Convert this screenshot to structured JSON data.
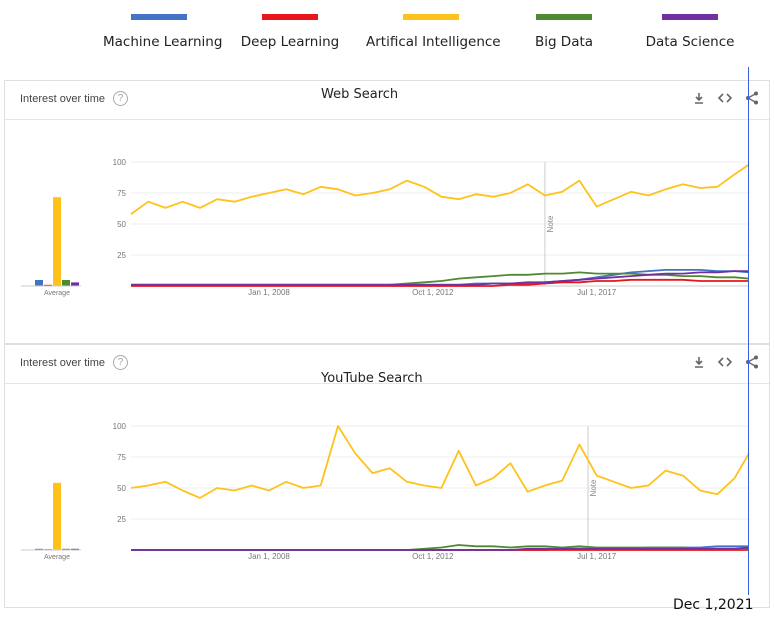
{
  "legend": [
    {
      "label": "Machine Learning",
      "color": "#4472c4"
    },
    {
      "label": "Deep Learning",
      "color": "#e8161b"
    },
    {
      "label": "Artifical Intelligence",
      "color": "#ffc21a"
    },
    {
      "label": "Big Data",
      "color": "#4e8a31"
    },
    {
      "label": "Data Science",
      "color": "#7030a0"
    }
  ],
  "panels": [
    {
      "header": "Interest over time",
      "subtitle": "Web Search"
    },
    {
      "header": "Interest over time",
      "subtitle": "YouTube Search"
    }
  ],
  "marker_label": "Dec 1,2021",
  "icons": {
    "help": "help-circle-icon",
    "download": "download-icon",
    "embed": "embed-code-icon",
    "share": "share-icon"
  },
  "chart_data": [
    {
      "type": "line",
      "title": "Web Search",
      "x_tick_labels": [
        "Jan 1, 2008",
        "Oct 1, 2012",
        "Jul 1, 2017"
      ],
      "y_ticks": [
        25,
        50,
        75,
        100
      ],
      "ylim": [
        0,
        100
      ],
      "xlim": [
        "2004-01",
        "2021-12"
      ],
      "annotation": "Note",
      "annotation_x": "2016-01",
      "average_label": "Average",
      "averages": [
        {
          "name": "Machine Learning",
          "value": 5
        },
        {
          "name": "Deep Learning",
          "value": 1
        },
        {
          "name": "Artifical Intelligence",
          "value": 74
        },
        {
          "name": "Big Data",
          "value": 5
        },
        {
          "name": "Data Science",
          "value": 3
        }
      ],
      "x": [
        "2004-01",
        "2004-07",
        "2005-01",
        "2005-07",
        "2006-01",
        "2006-07",
        "2007-01",
        "2007-07",
        "2008-01",
        "2008-07",
        "2009-01",
        "2009-07",
        "2010-01",
        "2010-07",
        "2011-01",
        "2011-07",
        "2012-01",
        "2012-07",
        "2013-01",
        "2013-07",
        "2014-01",
        "2014-07",
        "2015-01",
        "2015-07",
        "2016-01",
        "2016-07",
        "2017-01",
        "2017-07",
        "2018-01",
        "2018-07",
        "2019-01",
        "2019-07",
        "2020-01",
        "2020-07",
        "2021-01",
        "2021-07",
        "2021-12"
      ],
      "series": [
        {
          "name": "Machine Learning",
          "color": "#4472c4",
          "values": [
            1,
            1,
            1,
            1,
            1,
            1,
            1,
            1,
            1,
            1,
            1,
            1,
            1,
            1,
            1,
            1,
            1,
            1,
            1,
            1,
            2,
            2,
            2,
            2,
            3,
            4,
            5,
            7,
            9,
            11,
            12,
            13,
            13,
            13,
            12,
            12,
            11
          ]
        },
        {
          "name": "Deep Learning",
          "color": "#e8161b",
          "values": [
            0,
            0,
            0,
            0,
            0,
            0,
            0,
            0,
            0,
            0,
            0,
            0,
            0,
            0,
            0,
            0,
            0,
            0,
            0,
            0,
            0,
            0,
            1,
            1,
            2,
            3,
            3,
            4,
            4,
            5,
            5,
            5,
            5,
            4,
            4,
            4,
            4
          ]
        },
        {
          "name": "Artifical Intelligence",
          "color": "#ffc21a",
          "values": [
            58,
            68,
            63,
            68,
            63,
            70,
            68,
            72,
            75,
            78,
            74,
            80,
            78,
            73,
            75,
            78,
            85,
            80,
            72,
            70,
            74,
            72,
            75,
            82,
            73,
            76,
            85,
            64,
            70,
            76,
            73,
            78,
            82,
            79,
            80,
            90,
            98
          ]
        },
        {
          "name": "Big Data",
          "color": "#4e8a31",
          "values": [
            1,
            1,
            1,
            1,
            1,
            1,
            1,
            1,
            1,
            1,
            1,
            1,
            1,
            1,
            1,
            1,
            2,
            3,
            4,
            6,
            7,
            8,
            9,
            9,
            10,
            10,
            11,
            10,
            10,
            10,
            9,
            9,
            8,
            8,
            7,
            7,
            6
          ]
        },
        {
          "name": "Data Science",
          "color": "#7030a0",
          "values": [
            1,
            1,
            1,
            1,
            1,
            1,
            1,
            1,
            1,
            1,
            1,
            1,
            1,
            1,
            1,
            1,
            1,
            1,
            1,
            1,
            1,
            2,
            2,
            3,
            3,
            4,
            5,
            6,
            7,
            8,
            9,
            10,
            10,
            11,
            11,
            12,
            12
          ]
        }
      ]
    },
    {
      "type": "line",
      "title": "YouTube Search",
      "x_tick_labels": [
        "Jan 1, 2008",
        "Oct 1, 2012",
        "Jul 1, 2017"
      ],
      "y_ticks": [
        25,
        50,
        75,
        100
      ],
      "ylim": [
        0,
        100
      ],
      "xlim": [
        "2004-01",
        "2021-12"
      ],
      "annotation": "Note",
      "annotation_x": "2017-04",
      "average_label": "Average",
      "averages": [
        {
          "name": "Machine Learning",
          "value": 1
        },
        {
          "name": "Deep Learning",
          "value": 0
        },
        {
          "name": "Artifical Intelligence",
          "value": 56
        },
        {
          "name": "Big Data",
          "value": 1
        },
        {
          "name": "Data Science",
          "value": 1
        }
      ],
      "x": [
        "2004-01",
        "2004-07",
        "2005-01",
        "2005-07",
        "2006-01",
        "2006-07",
        "2007-01",
        "2007-07",
        "2008-01",
        "2008-07",
        "2009-01",
        "2009-07",
        "2010-01",
        "2010-07",
        "2011-01",
        "2011-07",
        "2012-01",
        "2012-07",
        "2013-01",
        "2013-07",
        "2014-01",
        "2014-07",
        "2015-01",
        "2015-07",
        "2016-01",
        "2016-07",
        "2017-01",
        "2017-07",
        "2018-01",
        "2018-07",
        "2019-01",
        "2019-07",
        "2020-01",
        "2020-07",
        "2021-01",
        "2021-07",
        "2021-12"
      ],
      "series": [
        {
          "name": "Machine Learning",
          "color": "#4472c4",
          "values": [
            0,
            0,
            0,
            0,
            0,
            0,
            0,
            0,
            0,
            0,
            0,
            0,
            0,
            0,
            0,
            0,
            0,
            0,
            0,
            0,
            0,
            0,
            0,
            0,
            0,
            1,
            1,
            1,
            1,
            1,
            2,
            2,
            2,
            2,
            3,
            3,
            3
          ]
        },
        {
          "name": "Deep Learning",
          "color": "#e8161b",
          "values": [
            0,
            0,
            0,
            0,
            0,
            0,
            0,
            0,
            0,
            0,
            0,
            0,
            0,
            0,
            0,
            0,
            0,
            0,
            0,
            0,
            0,
            0,
            0,
            0,
            0,
            0,
            0,
            0,
            0,
            0,
            0,
            0,
            0,
            0,
            0,
            0,
            0
          ]
        },
        {
          "name": "Artifical Intelligence",
          "color": "#ffc21a",
          "values": [
            50,
            52,
            55,
            48,
            42,
            50,
            48,
            52,
            48,
            55,
            50,
            52,
            100,
            78,
            62,
            66,
            55,
            52,
            50,
            80,
            52,
            58,
            70,
            47,
            52,
            56,
            85,
            60,
            55,
            50,
            52,
            64,
            60,
            48,
            45,
            58,
            78
          ]
        },
        {
          "name": "Big Data",
          "color": "#4e8a31",
          "values": [
            0,
            0,
            0,
            0,
            0,
            0,
            0,
            0,
            0,
            0,
            0,
            0,
            0,
            0,
            0,
            0,
            0,
            1,
            2,
            4,
            3,
            3,
            2,
            3,
            3,
            2,
            3,
            2,
            2,
            2,
            2,
            2,
            2,
            1,
            1,
            1,
            1
          ]
        },
        {
          "name": "Data Science",
          "color": "#7030a0",
          "values": [
            0,
            0,
            0,
            0,
            0,
            0,
            0,
            0,
            0,
            0,
            0,
            0,
            0,
            0,
            0,
            0,
            0,
            0,
            0,
            0,
            0,
            0,
            0,
            1,
            1,
            1,
            1,
            1,
            1,
            1,
            1,
            1,
            1,
            1,
            1,
            1,
            2
          ]
        }
      ]
    }
  ]
}
